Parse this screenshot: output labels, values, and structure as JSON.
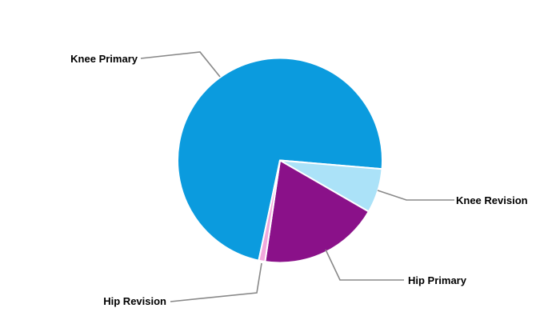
{
  "chart_data": {
    "type": "pie",
    "title": "",
    "slices": [
      {
        "label": "Knee Primary",
        "value": 73,
        "color": "#0B9BDE"
      },
      {
        "label": "Knee Revision",
        "value": 7,
        "color": "#ABE2F8"
      },
      {
        "label": "Hip Primary",
        "value": 19,
        "color": "#8A1189"
      },
      {
        "label": "Hip Revision",
        "value": 1,
        "color": "#F2A8DC"
      }
    ],
    "values_unit": "% (estimated from slice angles)",
    "start_angle_deg_clockwise_from_east": 102,
    "direction": "clockwise",
    "separator_color": "#FFFFFF",
    "legend": "none",
    "labels_style": "external with leader lines",
    "leader_line_color": "#888888",
    "label_text_color": "#000000",
    "background": "#FFFFFF"
  }
}
